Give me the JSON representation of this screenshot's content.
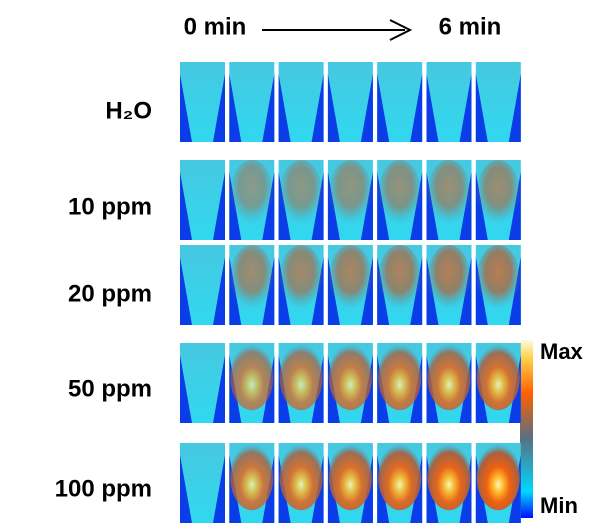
{
  "header": {
    "start": "0 min",
    "end": "6 min"
  },
  "rows": [
    {
      "label": "H₂O"
    },
    {
      "label": "10 ppm"
    },
    {
      "label": "20 ppm"
    },
    {
      "label": "50 ppm"
    },
    {
      "label": "100 ppm"
    }
  ],
  "colorbar": {
    "max": "Max",
    "min": "Min"
  }
}
